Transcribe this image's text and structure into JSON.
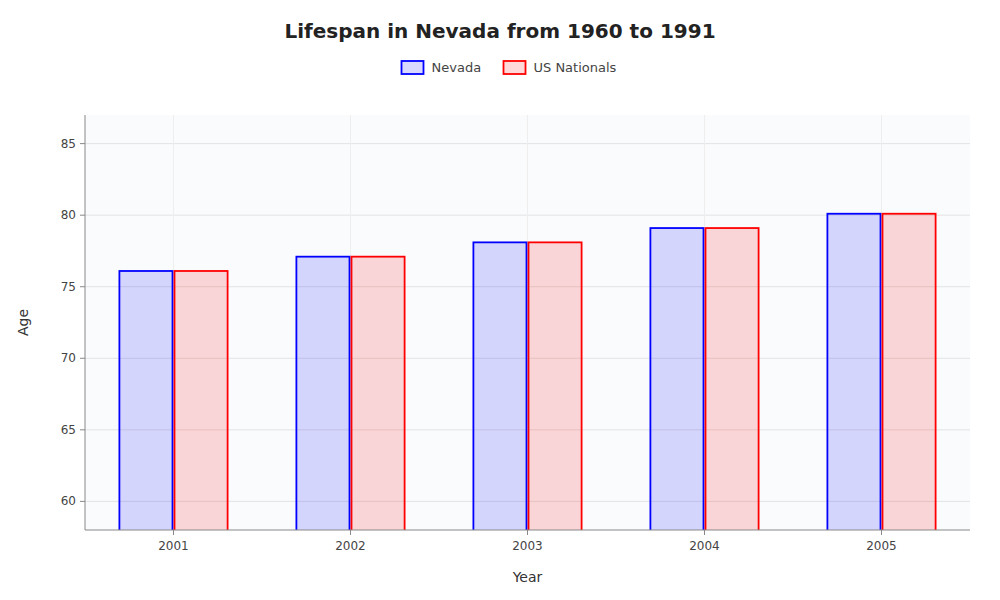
{
  "chart_data": {
    "type": "bar",
    "title": "Lifespan in Nevada from 1960 to 1991",
    "xlabel": "Year",
    "ylabel": "Age",
    "categories": [
      "2001",
      "2002",
      "2003",
      "2004",
      "2005"
    ],
    "series": [
      {
        "name": "Nevada",
        "color": "#0000ff",
        "values": [
          76.1,
          77.1,
          78.1,
          79.1,
          80.1
        ]
      },
      {
        "name": "US Nationals",
        "color": "#ff0000",
        "values": [
          76.1,
          77.1,
          78.1,
          79.1,
          80.1
        ]
      }
    ],
    "ylim": [
      58,
      87
    ],
    "yticks": [
      60,
      65,
      70,
      75,
      80,
      85
    ],
    "grid": true,
    "legend": "top"
  }
}
